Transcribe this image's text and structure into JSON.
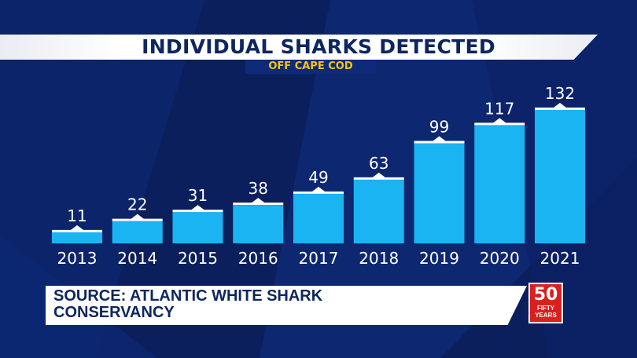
{
  "header": {
    "title": "INDIVIDUAL SHARKS DETECTED",
    "subtitle": "OFF CAPE COD"
  },
  "footer": {
    "source_line1": "SOURCE: ATLANTIC WHITE SHARK",
    "source_line2": "CONSERVANCY"
  },
  "logo": {
    "number": "50",
    "line1": "FIFTY",
    "line2": "YEARS",
    "color": "#d9201f"
  },
  "colors": {
    "bar": "#1ab4f2",
    "bar_cap": "#ffffff",
    "background": "#0a1f5c",
    "title_text": "#0e2660",
    "subtitle_text": "#f5c518"
  },
  "chart_data": {
    "type": "bar",
    "title": "INDIVIDUAL SHARKS DETECTED",
    "subtitle": "OFF CAPE COD",
    "categories": [
      "2013",
      "2014",
      "2015",
      "2016",
      "2017",
      "2018",
      "2019",
      "2020",
      "2021"
    ],
    "values": [
      11,
      22,
      31,
      38,
      49,
      63,
      99,
      117,
      132
    ],
    "xlabel": "",
    "ylabel": "",
    "ylim": [
      0,
      140
    ],
    "grid": false,
    "legend": "none",
    "data_labels": true
  }
}
